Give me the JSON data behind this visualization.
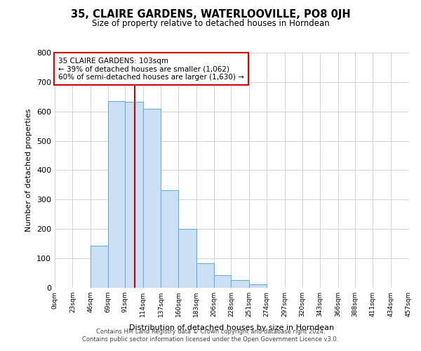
{
  "title": "35, CLAIRE GARDENS, WATERLOOVILLE, PO8 0JH",
  "subtitle": "Size of property relative to detached houses in Horndean",
  "xlabel": "Distribution of detached houses by size in Horndean",
  "ylabel": "Number of detached properties",
  "bin_edges": [
    0,
    23,
    46,
    69,
    91,
    114,
    137,
    160,
    183,
    206,
    228,
    251,
    274,
    297,
    320,
    343,
    366,
    388,
    411,
    434,
    457
  ],
  "bin_counts": [
    0,
    0,
    143,
    635,
    632,
    608,
    331,
    200,
    84,
    43,
    27,
    11,
    0,
    0,
    0,
    0,
    0,
    0,
    0,
    0
  ],
  "tick_labels": [
    "0sqm",
    "23sqm",
    "46sqm",
    "69sqm",
    "91sqm",
    "114sqm",
    "137sqm",
    "160sqm",
    "183sqm",
    "206sqm",
    "228sqm",
    "251sqm",
    "274sqm",
    "297sqm",
    "320sqm",
    "343sqm",
    "366sqm",
    "388sqm",
    "411sqm",
    "434sqm",
    "457sqm"
  ],
  "bar_color": "#cce0f5",
  "bar_edge_color": "#6aadd5",
  "property_size": 103,
  "vline_color": "#cc0000",
  "annotation_title": "35 CLAIRE GARDENS: 103sqm",
  "annotation_line1": "← 39% of detached houses are smaller (1,062)",
  "annotation_line2": "60% of semi-detached houses are larger (1,630) →",
  "annotation_box_edge": "#cc0000",
  "ylim": [
    0,
    800
  ],
  "yticks": [
    0,
    100,
    200,
    300,
    400,
    500,
    600,
    700,
    800
  ],
  "footer1": "Contains HM Land Registry data © Crown copyright and database right 2024.",
  "footer2": "Contains public sector information licensed under the Open Government Licence v3.0."
}
